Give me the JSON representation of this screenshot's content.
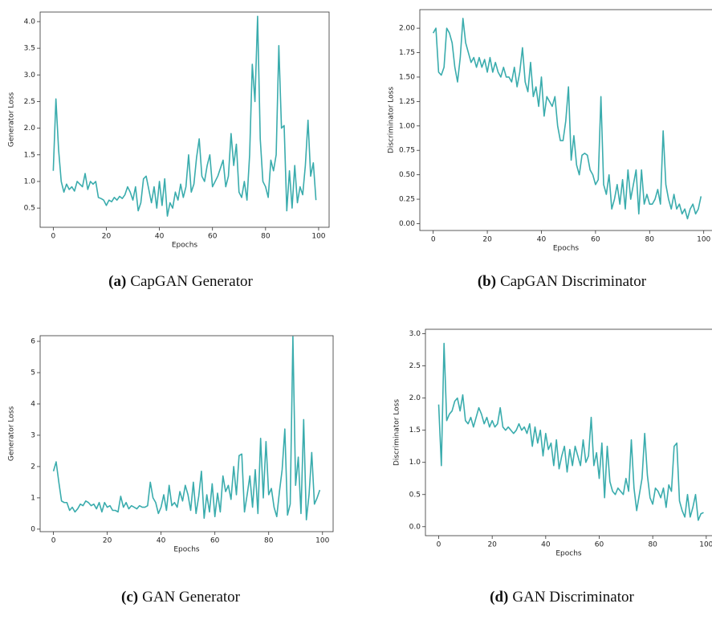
{
  "chart_data": [
    {
      "type": "line",
      "x_label": "Epochs",
      "y_label": "Generator Loss",
      "caption_label": "(a)",
      "caption": "CapGAN Generator",
      "color": "#3aacad",
      "xlim": [
        -4.95,
        103.95
      ],
      "xticks": [
        0,
        20,
        40,
        60,
        80,
        100
      ],
      "ylim": [
        0.14,
        4.18
      ],
      "yticks": [
        0.5,
        {
          "value": 1,
          "label": "1.0"
        },
        1.5,
        {
          "value": 2,
          "label": "2.0"
        },
        2.5,
        {
          "value": 3,
          "label": "3.0"
        },
        3.5,
        {
          "value": 4,
          "label": "4.0"
        }
      ],
      "x": [
        0,
        1,
        2,
        3,
        4,
        5,
        6,
        7,
        8,
        9,
        10,
        11,
        12,
        13,
        14,
        15,
        16,
        17,
        18,
        19,
        20,
        21,
        22,
        23,
        24,
        25,
        26,
        27,
        28,
        29,
        30,
        31,
        32,
        33,
        34,
        35,
        36,
        37,
        38,
        39,
        40,
        41,
        42,
        43,
        44,
        45,
        46,
        47,
        48,
        49,
        50,
        51,
        52,
        53,
        54,
        55,
        56,
        57,
        58,
        59,
        60,
        61,
        62,
        63,
        64,
        65,
        66,
        67,
        68,
        69,
        70,
        71,
        72,
        73,
        74,
        75,
        76,
        77,
        78,
        79,
        80,
        81,
        82,
        83,
        84,
        85,
        86,
        87,
        88,
        89,
        90,
        91,
        92,
        93,
        94,
        95,
        96,
        97,
        98,
        99
      ],
      "values": [
        1.2,
        2.55,
        1.6,
        1.0,
        0.8,
        0.95,
        0.85,
        0.9,
        0.82,
        1.0,
        0.95,
        0.9,
        1.15,
        0.85,
        1.0,
        0.95,
        1.0,
        0.7,
        0.68,
        0.65,
        0.55,
        0.65,
        0.62,
        0.7,
        0.65,
        0.72,
        0.68,
        0.75,
        0.9,
        0.8,
        0.65,
        0.9,
        0.45,
        0.6,
        1.05,
        1.1,
        0.85,
        0.6,
        0.9,
        0.5,
        1.0,
        0.55,
        1.05,
        0.35,
        0.6,
        0.5,
        0.8,
        0.65,
        0.95,
        0.7,
        0.9,
        1.5,
        0.8,
        0.95,
        1.45,
        1.8,
        1.1,
        1.0,
        1.3,
        1.5,
        0.9,
        1.0,
        1.1,
        1.25,
        1.4,
        0.9,
        1.1,
        1.9,
        1.3,
        1.7,
        0.8,
        0.7,
        1.0,
        0.65,
        1.5,
        3.2,
        2.5,
        4.1,
        1.8,
        1.0,
        0.9,
        0.7,
        1.4,
        1.2,
        1.5,
        3.55,
        2.0,
        2.05,
        0.45,
        1.2,
        0.5,
        1.3,
        0.6,
        0.9,
        0.75,
        1.3,
        2.15,
        1.1,
        1.35,
        0.65
      ]
    },
    {
      "type": "line",
      "x_label": "Epochs",
      "y_label": "Discriminator Loss",
      "caption_label": "(b)",
      "caption": "CapGAN Discriminator",
      "color": "#3aacad",
      "xlim": [
        -4.95,
        103.95
      ],
      "xticks": [
        0,
        20,
        40,
        60,
        80,
        100
      ],
      "ylim": [
        -0.07,
        2.19
      ],
      "yticks": [
        {
          "value": 0,
          "label": "0.00"
        },
        {
          "value": 0.25,
          "label": "0.25"
        },
        {
          "value": 0.5,
          "label": "0.50"
        },
        {
          "value": 0.75,
          "label": "0.75"
        },
        {
          "value": 1,
          "label": "1.00"
        },
        {
          "value": 1.25,
          "label": "1.25"
        },
        {
          "value": 1.5,
          "label": "1.50"
        },
        {
          "value": 1.75,
          "label": "1.75"
        },
        {
          "value": 2,
          "label": "2.00"
        }
      ],
      "x": [
        0,
        1,
        2,
        3,
        4,
        5,
        6,
        7,
        8,
        9,
        10,
        11,
        12,
        13,
        14,
        15,
        16,
        17,
        18,
        19,
        20,
        21,
        22,
        23,
        24,
        25,
        26,
        27,
        28,
        29,
        30,
        31,
        32,
        33,
        34,
        35,
        36,
        37,
        38,
        39,
        40,
        41,
        42,
        43,
        44,
        45,
        46,
        47,
        48,
        49,
        50,
        51,
        52,
        53,
        54,
        55,
        56,
        57,
        58,
        59,
        60,
        61,
        62,
        63,
        64,
        65,
        66,
        67,
        68,
        69,
        70,
        71,
        72,
        73,
        74,
        75,
        76,
        77,
        78,
        79,
        80,
        81,
        82,
        83,
        84,
        85,
        86,
        87,
        88,
        89,
        90,
        91,
        92,
        93,
        94,
        95,
        96,
        97,
        98,
        99
      ],
      "values": [
        1.95,
        2.0,
        1.55,
        1.52,
        1.6,
        2.0,
        1.95,
        1.85,
        1.6,
        1.45,
        1.7,
        2.1,
        1.85,
        1.75,
        1.65,
        1.7,
        1.6,
        1.7,
        1.6,
        1.68,
        1.55,
        1.7,
        1.55,
        1.65,
        1.55,
        1.5,
        1.6,
        1.5,
        1.5,
        1.45,
        1.6,
        1.4,
        1.55,
        1.8,
        1.45,
        1.35,
        1.65,
        1.3,
        1.4,
        1.2,
        1.5,
        1.1,
        1.3,
        1.25,
        1.2,
        1.3,
        1.0,
        0.85,
        0.85,
        1.05,
        1.4,
        0.65,
        0.9,
        0.6,
        0.5,
        0.7,
        0.72,
        0.7,
        0.55,
        0.5,
        0.4,
        0.45,
        1.3,
        0.4,
        0.3,
        0.5,
        0.15,
        0.25,
        0.4,
        0.2,
        0.45,
        0.15,
        0.55,
        0.25,
        0.4,
        0.55,
        0.1,
        0.55,
        0.2,
        0.3,
        0.2,
        0.2,
        0.25,
        0.35,
        0.2,
        0.95,
        0.4,
        0.25,
        0.15,
        0.3,
        0.15,
        0.2,
        0.1,
        0.15,
        0.05,
        0.15,
        0.2,
        0.1,
        0.15,
        0.28
      ]
    },
    {
      "type": "line",
      "x_label": "Epochs",
      "y_label": "Generator Loss",
      "caption_label": "(c)",
      "caption": "GAN Generator",
      "color": "#3aacad",
      "xlim": [
        -4.95,
        103.95
      ],
      "xticks": [
        0,
        20,
        40,
        60,
        80,
        100
      ],
      "ylim": [
        -0.08,
        6.18
      ],
      "yticks": [
        0,
        1,
        2,
        3,
        4,
        5,
        6
      ],
      "x": [
        0,
        1,
        2,
        3,
        4,
        5,
        6,
        7,
        8,
        9,
        10,
        11,
        12,
        13,
        14,
        15,
        16,
        17,
        18,
        19,
        20,
        21,
        22,
        23,
        24,
        25,
        26,
        27,
        28,
        29,
        30,
        31,
        32,
        33,
        34,
        35,
        36,
        37,
        38,
        39,
        40,
        41,
        42,
        43,
        44,
        45,
        46,
        47,
        48,
        49,
        50,
        51,
        52,
        53,
        54,
        55,
        56,
        57,
        58,
        59,
        60,
        61,
        62,
        63,
        64,
        65,
        66,
        67,
        68,
        69,
        70,
        71,
        72,
        73,
        74,
        75,
        76,
        77,
        78,
        79,
        80,
        81,
        82,
        83,
        84,
        85,
        86,
        87,
        88,
        89,
        90,
        91,
        92,
        93,
        94,
        95,
        96,
        97,
        98,
        99
      ],
      "values": [
        1.85,
        2.15,
        1.5,
        0.9,
        0.85,
        0.85,
        0.6,
        0.7,
        0.55,
        0.65,
        0.8,
        0.75,
        0.9,
        0.85,
        0.75,
        0.8,
        0.65,
        0.85,
        0.55,
        0.85,
        0.7,
        0.75,
        0.6,
        0.6,
        0.55,
        1.05,
        0.7,
        0.85,
        0.65,
        0.75,
        0.7,
        0.65,
        0.75,
        0.7,
        0.7,
        0.75,
        1.5,
        1.0,
        0.85,
        0.5,
        0.7,
        1.1,
        0.6,
        1.4,
        0.75,
        0.85,
        0.7,
        1.2,
        0.9,
        1.4,
        1.1,
        0.6,
        1.5,
        0.5,
        1.05,
        1.85,
        0.35,
        1.1,
        0.55,
        1.45,
        0.4,
        1.15,
        0.55,
        1.7,
        1.2,
        1.4,
        0.95,
        2.0,
        1.1,
        2.35,
        2.4,
        0.55,
        1.1,
        1.7,
        0.7,
        1.9,
        0.5,
        2.9,
        1.0,
        2.8,
        1.1,
        1.3,
        0.7,
        0.4,
        1.2,
        1.9,
        3.2,
        0.45,
        0.8,
        6.15,
        1.4,
        2.3,
        0.5,
        3.5,
        0.3,
        1.1,
        2.45,
        0.8,
        1.0,
        1.25
      ]
    },
    {
      "type": "line",
      "x_label": "Epochs",
      "y_label": "Discriminator Loss",
      "caption_label": "(d)",
      "caption": "GAN Discriminator",
      "color": "#3aacad",
      "xlim": [
        -4.95,
        103.95
      ],
      "xticks": [
        0,
        20,
        40,
        60,
        80,
        100
      ],
      "ylim": [
        -0.14,
        3.07
      ],
      "yticks": [
        {
          "value": 0,
          "label": "0.0"
        },
        0.5,
        {
          "value": 1,
          "label": "1.0"
        },
        1.5,
        {
          "value": 2,
          "label": "2.0"
        },
        2.5,
        {
          "value": 3,
          "label": "3.0"
        }
      ],
      "x": [
        0,
        1,
        2,
        3,
        4,
        5,
        6,
        7,
        8,
        9,
        10,
        11,
        12,
        13,
        14,
        15,
        16,
        17,
        18,
        19,
        20,
        21,
        22,
        23,
        24,
        25,
        26,
        27,
        28,
        29,
        30,
        31,
        32,
        33,
        34,
        35,
        36,
        37,
        38,
        39,
        40,
        41,
        42,
        43,
        44,
        45,
        46,
        47,
        48,
        49,
        50,
        51,
        52,
        53,
        54,
        55,
        56,
        57,
        58,
        59,
        60,
        61,
        62,
        63,
        64,
        65,
        66,
        67,
        68,
        69,
        70,
        71,
        72,
        73,
        74,
        75,
        76,
        77,
        78,
        79,
        80,
        81,
        82,
        83,
        84,
        85,
        86,
        87,
        88,
        89,
        90,
        91,
        92,
        93,
        94,
        95,
        96,
        97,
        98,
        99
      ],
      "values": [
        1.9,
        0.95,
        2.85,
        1.65,
        1.75,
        1.8,
        1.95,
        2.0,
        1.8,
        2.05,
        1.65,
        1.6,
        1.7,
        1.55,
        1.7,
        1.85,
        1.75,
        1.6,
        1.7,
        1.55,
        1.65,
        1.55,
        1.6,
        1.85,
        1.55,
        1.5,
        1.55,
        1.5,
        1.45,
        1.5,
        1.6,
        1.5,
        1.55,
        1.45,
        1.6,
        1.25,
        1.55,
        1.3,
        1.5,
        1.1,
        1.45,
        1.2,
        1.3,
        0.95,
        1.35,
        0.9,
        1.1,
        1.25,
        0.85,
        1.2,
        0.95,
        1.25,
        1.1,
        0.95,
        1.35,
        1.0,
        1.1,
        1.7,
        0.95,
        1.15,
        0.75,
        1.3,
        0.45,
        1.25,
        0.7,
        0.55,
        0.5,
        0.6,
        0.55,
        0.5,
        0.75,
        0.55,
        1.35,
        0.6,
        0.25,
        0.5,
        0.75,
        1.45,
        0.8,
        0.45,
        0.35,
        0.6,
        0.55,
        0.45,
        0.6,
        0.3,
        0.65,
        0.55,
        1.25,
        1.3,
        0.4,
        0.25,
        0.15,
        0.5,
        0.15,
        0.3,
        0.5,
        0.1,
        0.2,
        0.22
      ]
    }
  ]
}
